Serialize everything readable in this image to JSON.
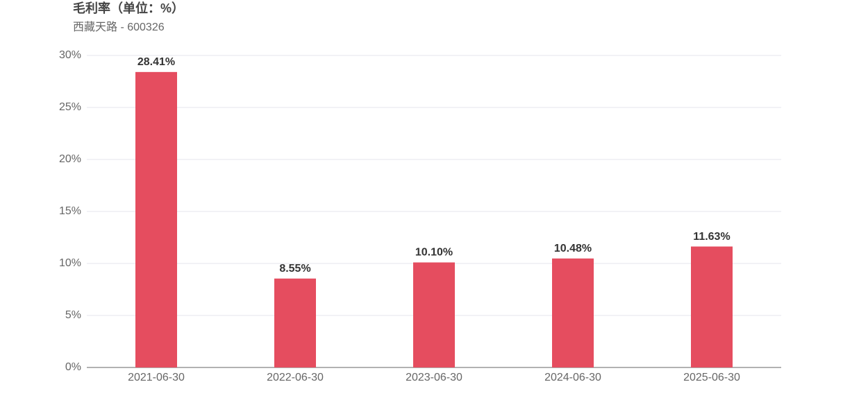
{
  "chart_data": {
    "type": "bar",
    "title": "毛利率（单位：%）",
    "subtitle": "西藏天路 - 600326",
    "categories": [
      "2021-06-30",
      "2022-06-30",
      "2023-06-30",
      "2024-06-30",
      "2025-06-30"
    ],
    "values": [
      28.41,
      8.55,
      10.1,
      10.48,
      11.63
    ],
    "value_labels": [
      "28.41%",
      "8.55%",
      "10.10%",
      "10.48%",
      "11.63%"
    ],
    "color": "#e54d5f",
    "ylim": [
      0,
      30
    ],
    "yticks": [
      {
        "value": 0,
        "label": "0%"
      },
      {
        "value": 5,
        "label": "5%"
      },
      {
        "value": 10,
        "label": "10%"
      },
      {
        "value": 15,
        "label": "15%"
      },
      {
        "value": 20,
        "label": "20%"
      },
      {
        "value": 25,
        "label": "25%"
      },
      {
        "value": 30,
        "label": "30%"
      }
    ],
    "grid": true
  }
}
